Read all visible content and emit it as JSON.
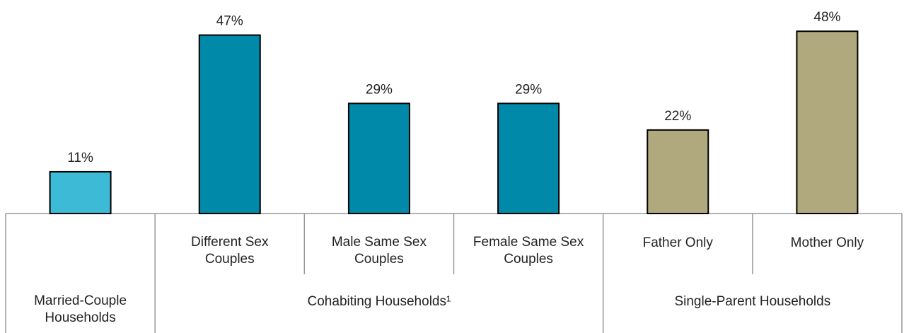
{
  "chart_data": {
    "type": "bar",
    "title": "",
    "xlabel": "",
    "ylabel": "",
    "ylim": [
      0,
      50
    ],
    "grid": false,
    "legend": "none",
    "categories": [
      [
        "Married-Couple",
        "Households"
      ],
      [
        "Different Sex",
        "Couples"
      ],
      [
        "Male Same Sex",
        "Couples"
      ],
      [
        "Female Same Sex",
        "Couples"
      ],
      [
        "Father Only"
      ],
      [
        "Mother Only"
      ]
    ],
    "values": [
      11,
      47,
      29,
      29,
      22,
      48
    ],
    "value_labels": [
      "11%",
      "47%",
      "29%",
      "29%",
      "22%",
      "48%"
    ],
    "groups": [
      {
        "label": [
          "Married-Couple",
          "Households"
        ],
        "members": [
          0
        ],
        "color": "#3dbad6"
      },
      {
        "label": [
          "Cohabiting Households¹"
        ],
        "members": [
          1,
          2,
          3
        ],
        "color": "#0089a8"
      },
      {
        "label": [
          "Single-Parent Households"
        ],
        "members": [
          4,
          5
        ],
        "color": "#b0a97e"
      }
    ],
    "show_category_labels": [
      false,
      true,
      true,
      true,
      true,
      true
    ]
  }
}
